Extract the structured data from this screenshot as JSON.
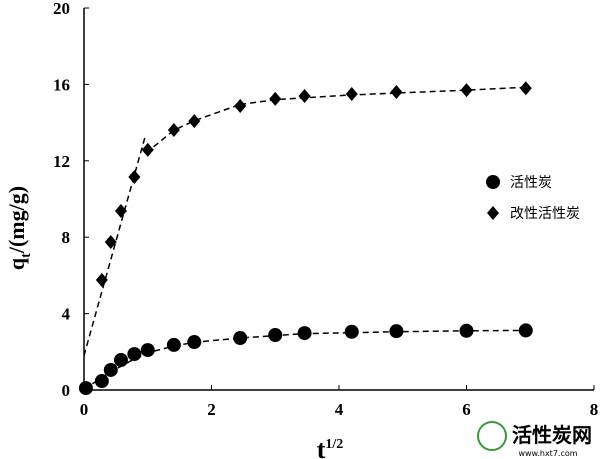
{
  "chart_data": {
    "type": "scatter",
    "xlabel": {
      "main": "t",
      "sup": "1/2"
    },
    "ylabel": {
      "main": "q",
      "sub": "t",
      "rest": "/(mg/g)"
    },
    "xlim": [
      0,
      8
    ],
    "xticks": [
      0,
      2,
      4,
      6,
      8
    ],
    "ylim": [
      0,
      20
    ],
    "yticks": [
      0,
      4,
      8,
      12,
      16,
      20
    ],
    "series": [
      {
        "name": "活性炭",
        "marker": "circle",
        "color": "#000000",
        "x": [
          0.03,
          0.28,
          0.42,
          0.58,
          0.79,
          1.0,
          1.41,
          1.73,
          2.45,
          3.0,
          3.46,
          4.2,
          4.9,
          6.0,
          6.93
        ],
        "values": [
          0.1,
          0.47,
          1.05,
          1.57,
          1.88,
          2.09,
          2.36,
          2.51,
          2.72,
          2.88,
          2.98,
          3.05,
          3.08,
          3.1,
          3.12
        ]
      },
      {
        "name": "改性活性炭",
        "marker": "diamond",
        "color": "#000000",
        "x": [
          0.28,
          0.42,
          0.58,
          0.79,
          1.0,
          1.41,
          1.73,
          2.45,
          3.0,
          3.46,
          4.2,
          4.9,
          6.0,
          6.93
        ],
        "values": [
          5.76,
          7.75,
          9.37,
          11.15,
          12.57,
          13.61,
          14.08,
          14.87,
          15.24,
          15.39,
          15.5,
          15.6,
          15.7,
          15.8
        ]
      }
    ],
    "fits": [
      {
        "x": [
          0,
          0.45,
          0.72,
          1.0,
          1.41,
          1.73,
          2.45,
          3.0,
          3.46,
          4.2,
          4.9,
          6.0,
          6.93
        ],
        "y": [
          0.05,
          1.0,
          1.5,
          1.95,
          2.3,
          2.5,
          2.72,
          2.85,
          2.95,
          3.0,
          3.05,
          3.1,
          3.12
        ]
      },
      {
        "x": [
          0,
          0.97
        ],
        "y": [
          1.8,
          13.4
        ]
      },
      {
        "x": [
          0.97,
          1.41,
          1.73,
          2.45
        ],
        "y": [
          12.4,
          13.6,
          14.1,
          14.95
        ]
      },
      {
        "x": [
          2.45,
          3.0,
          4.2,
          6.0,
          6.93
        ],
        "y": [
          14.95,
          15.2,
          15.45,
          15.7,
          15.85
        ]
      }
    ],
    "watermark": {
      "title": "活性炭网",
      "url": "www.hxt7.com"
    }
  }
}
